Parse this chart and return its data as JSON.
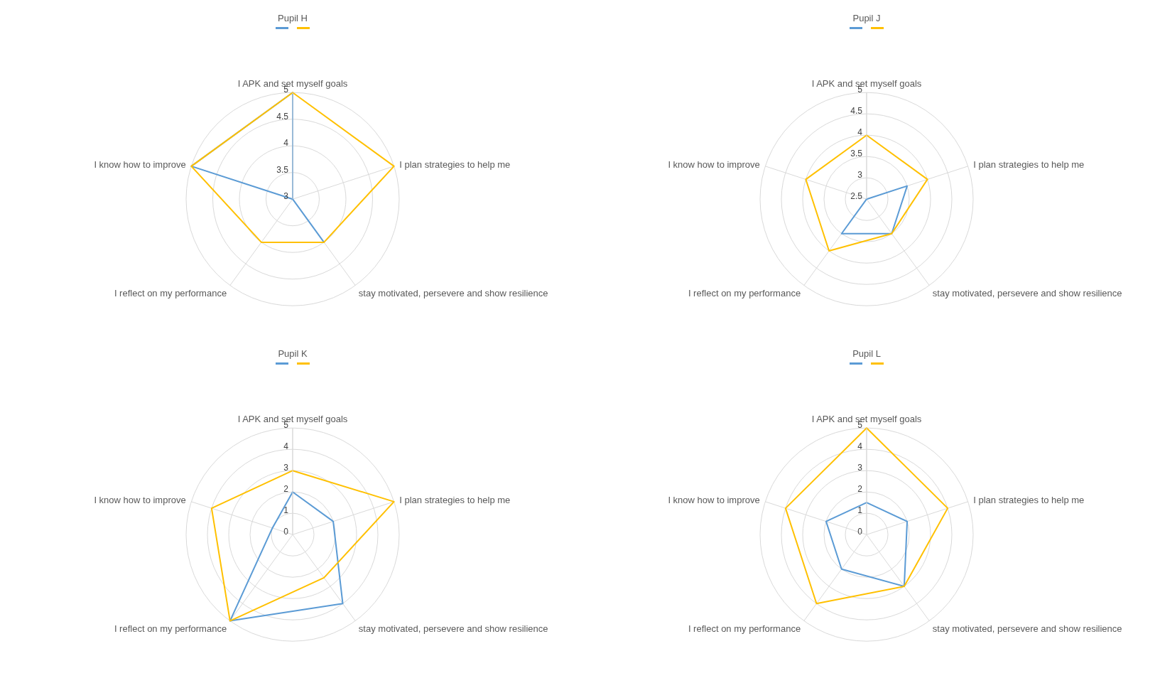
{
  "chart_data": [
    {
      "type": "radar",
      "title": "Pupil H",
      "categories": [
        "I APK and set myself goals",
        "I plan strategies to help me",
        "stay motivated, persevere and show resilience",
        "I reflect on my performance",
        "I know how to improve"
      ],
      "ylim": [
        3,
        5
      ],
      "yticks": [
        3,
        3.5,
        4,
        4.5,
        5
      ],
      "grid": true,
      "series": [
        {
          "color": "#5b9bd5",
          "values": [
            5,
            3,
            4,
            3,
            5
          ]
        },
        {
          "color": "#ffc000",
          "values": [
            5,
            5,
            4,
            4,
            5
          ]
        }
      ]
    },
    {
      "type": "radar",
      "title": "Pupil J",
      "categories": [
        "I APK and set myself goals",
        "I plan strategies to help me",
        "stay motivated, persevere and show resilience",
        "I reflect on my performance",
        "I know how to improve"
      ],
      "ylim": [
        2.5,
        5
      ],
      "yticks": [
        2.5,
        3,
        3.5,
        4,
        4.5,
        5
      ],
      "grid": true,
      "series": [
        {
          "color": "#5b9bd5",
          "values": [
            2.5,
            3.5,
            3.5,
            3.5,
            2.5
          ]
        },
        {
          "color": "#ffc000",
          "values": [
            4,
            4,
            3.5,
            4,
            4
          ]
        }
      ]
    },
    {
      "type": "radar",
      "title": "Pupil K",
      "categories": [
        "I APK and set myself goals",
        "I plan strategies to help me",
        "stay motivated, persevere and show resilience",
        "I reflect on my performance",
        "I know how to improve"
      ],
      "ylim": [
        0,
        5
      ],
      "yticks": [
        0,
        1,
        2,
        3,
        4,
        5
      ],
      "grid": true,
      "series": [
        {
          "color": "#5b9bd5",
          "values": [
            2,
            2,
            4,
            5,
            1
          ]
        },
        {
          "color": "#ffc000",
          "values": [
            3,
            5,
            2.5,
            5,
            4
          ]
        }
      ]
    },
    {
      "type": "radar",
      "title": "Pupil L",
      "categories": [
        "I APK and set myself goals",
        "I plan strategies to help me",
        "stay motivated, persevere and show resilience",
        "I reflect on my performance",
        "I know how to improve"
      ],
      "ylim": [
        0,
        5
      ],
      "yticks": [
        0,
        1,
        2,
        3,
        4,
        5
      ],
      "grid": true,
      "series": [
        {
          "color": "#5b9bd5",
          "values": [
            1.5,
            2,
            3,
            2,
            2
          ]
        },
        {
          "color": "#ffc000",
          "values": [
            5,
            4,
            3,
            4,
            4
          ]
        }
      ]
    }
  ]
}
